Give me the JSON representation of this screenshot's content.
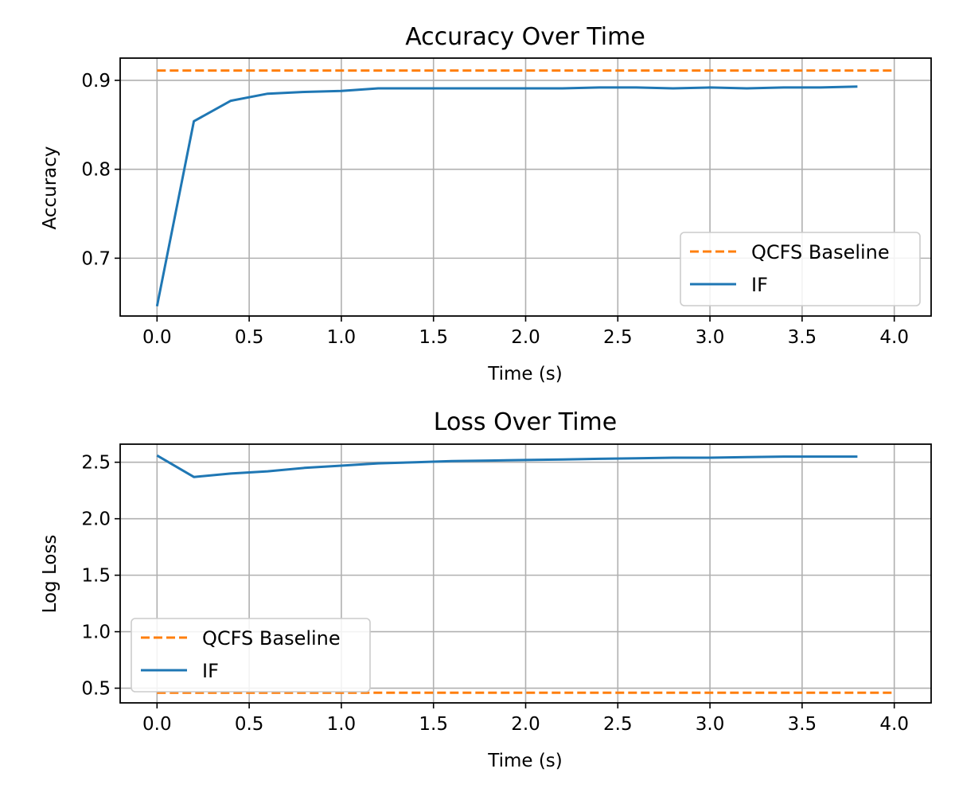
{
  "chart_data": [
    {
      "type": "line",
      "title": "Accuracy Over Time",
      "xlabel": "Time (s)",
      "ylabel": "Accuracy",
      "xlim": [
        -0.2,
        4.2
      ],
      "ylim": [
        0.635,
        0.925
      ],
      "xticks": [
        0.0,
        0.5,
        1.0,
        1.5,
        2.0,
        2.5,
        3.0,
        3.5,
        4.0
      ],
      "xtick_labels": [
        "0.0",
        "0.5",
        "1.0",
        "1.5",
        "2.0",
        "2.5",
        "3.0",
        "3.5",
        "4.0"
      ],
      "yticks": [
        0.7,
        0.8,
        0.9
      ],
      "ytick_labels": [
        "0.7",
        "0.8",
        "0.9"
      ],
      "grid": true,
      "legend": "lower-right",
      "series": [
        {
          "name": "QCFS Baseline",
          "style": "dashed",
          "color": "#ff7f0e",
          "x": [
            0.0,
            4.0
          ],
          "y": [
            0.911,
            0.911
          ]
        },
        {
          "name": "IF",
          "style": "solid",
          "color": "#1f77b4",
          "x": [
            0.0,
            0.2,
            0.4,
            0.6,
            0.8,
            1.0,
            1.2,
            1.4,
            1.6,
            1.8,
            2.0,
            2.2,
            2.4,
            2.6,
            2.8,
            3.0,
            3.2,
            3.4,
            3.6,
            3.8
          ],
          "y": [
            0.646,
            0.854,
            0.877,
            0.885,
            0.887,
            0.888,
            0.891,
            0.891,
            0.891,
            0.891,
            0.891,
            0.891,
            0.892,
            0.892,
            0.891,
            0.892,
            0.891,
            0.892,
            0.892,
            0.893
          ]
        }
      ]
    },
    {
      "type": "line",
      "title": "Loss Over Time",
      "xlabel": "Time (s)",
      "ylabel": "Log Loss",
      "xlim": [
        -0.2,
        4.2
      ],
      "ylim": [
        0.37,
        2.66
      ],
      "xticks": [
        0.0,
        0.5,
        1.0,
        1.5,
        2.0,
        2.5,
        3.0,
        3.5,
        4.0
      ],
      "xtick_labels": [
        "0.0",
        "0.5",
        "1.0",
        "1.5",
        "2.0",
        "2.5",
        "3.0",
        "3.5",
        "4.0"
      ],
      "yticks": [
        0.5,
        1.0,
        1.5,
        2.0,
        2.5
      ],
      "ytick_labels": [
        "0.5",
        "1.0",
        "1.5",
        "2.0",
        "2.5"
      ],
      "grid": true,
      "legend": "lower-left",
      "series": [
        {
          "name": "QCFS Baseline",
          "style": "dashed",
          "color": "#ff7f0e",
          "x": [
            0.0,
            4.0
          ],
          "y": [
            0.46,
            0.46
          ]
        },
        {
          "name": "IF",
          "style": "solid",
          "color": "#1f77b4",
          "x": [
            0.0,
            0.2,
            0.4,
            0.6,
            0.8,
            1.0,
            1.2,
            1.4,
            1.6,
            1.8,
            2.0,
            2.2,
            2.4,
            2.6,
            2.8,
            3.0,
            3.2,
            3.4,
            3.6,
            3.8
          ],
          "y": [
            2.56,
            2.37,
            2.4,
            2.42,
            2.45,
            2.47,
            2.49,
            2.5,
            2.51,
            2.515,
            2.52,
            2.525,
            2.53,
            2.535,
            2.54,
            2.54,
            2.545,
            2.55,
            2.55,
            2.55
          ]
        }
      ]
    }
  ]
}
